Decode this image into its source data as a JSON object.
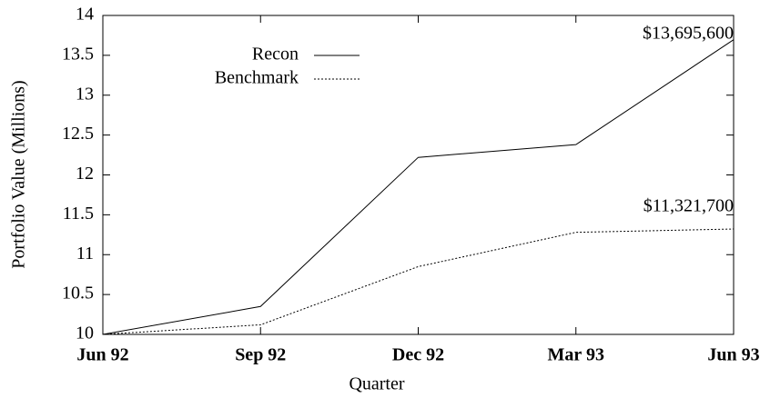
{
  "chart_data": {
    "type": "line",
    "x_label": "Quarter",
    "y_label": "Portfolio Value (Millions)",
    "categories": [
      "Jun 92",
      "Sep 92",
      "Dec 92",
      "Mar 93",
      "Jun 93"
    ],
    "series": [
      {
        "name": "Recon",
        "color": "#000000",
        "dash": "solid",
        "values": [
          10,
          10.35,
          12.22,
          12.38,
          13.6956
        ]
      },
      {
        "name": "Benchmark",
        "color": "#000000",
        "dash": "dotted",
        "values": [
          10,
          10.12,
          10.85,
          11.28,
          11.3217
        ]
      }
    ],
    "annotations": [
      "$13,695,600",
      "$11,321,700"
    ],
    "ylim": [
      10,
      14
    ],
    "yticks": [
      10,
      10.5,
      11,
      11.5,
      12,
      12.5,
      13,
      13.5,
      14
    ],
    "legend": "top-left"
  }
}
